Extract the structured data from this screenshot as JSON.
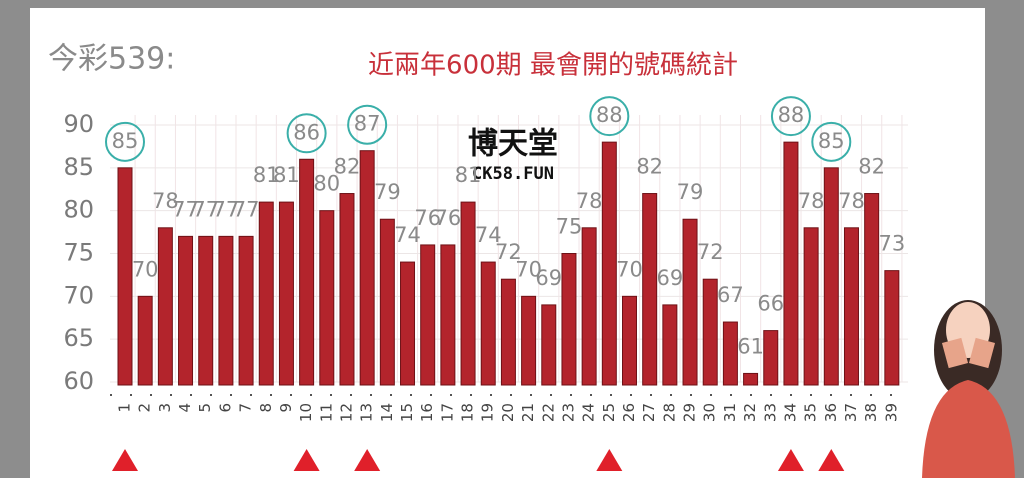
{
  "chart_data": {
    "type": "bar",
    "title": "近兩年600期  最會開的號碼統計",
    "subtitle": "今彩539:",
    "watermark": "博天堂",
    "watermark_sub": "CK58.FUN",
    "categories": [
      "1",
      "2",
      "3",
      "4",
      "5",
      "6",
      "7",
      "8",
      "9",
      "10",
      "11",
      "12",
      "13",
      "14",
      "15",
      "16",
      "17",
      "18",
      "19",
      "20",
      "21",
      "22",
      "23",
      "24",
      "25",
      "26",
      "27",
      "28",
      "29",
      "30",
      "31",
      "32",
      "33",
      "34",
      "35",
      "36",
      "37",
      "38",
      "39"
    ],
    "values": [
      85,
      70,
      78,
      77,
      77,
      77,
      77,
      81,
      81,
      86,
      80,
      82,
      87,
      79,
      74,
      76,
      76,
      81,
      74,
      72,
      70,
      69,
      75,
      78,
      88,
      70,
      82,
      69,
      79,
      72,
      67,
      61,
      66,
      88,
      78,
      85,
      78,
      82,
      73
    ],
    "color": "#b3242c",
    "highlight_min": 85,
    "highlight_color": "#3aafa9",
    "marker_color": "#e0202a",
    "ylim": [
      60,
      90
    ],
    "yticks": [
      60,
      65,
      70,
      75,
      80,
      85,
      90
    ],
    "grid": true
  }
}
